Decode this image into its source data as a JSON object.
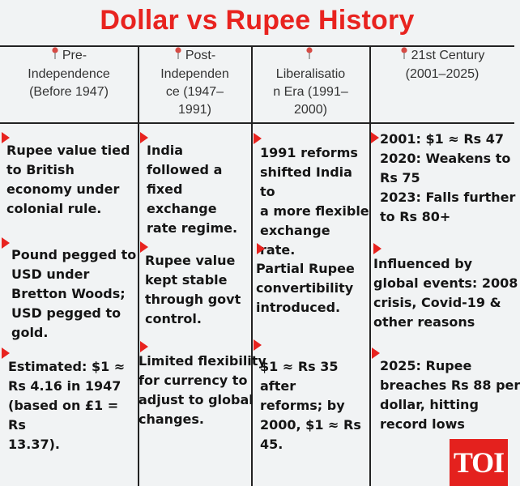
{
  "title": "Dollar vs Rupee History",
  "columns": [
    {
      "header_line1": "Pre-",
      "header_line2": "Independence",
      "header_line3": "(Before 1947)",
      "cells": [
        [
          "Rupee value tied",
          "to British",
          "economy under",
          "colonial rule."
        ],
        [
          "Pound pegged to",
          "USD under",
          "Bretton Woods;",
          "USD pegged to",
          "gold."
        ],
        [
          "Estimated: $1 ≈",
          "Rs 4.16 in 1947",
          "(based on £1 = Rs",
          "13.37)."
        ]
      ]
    },
    {
      "header_line1": "Post-",
      "header_line2": "Independen",
      "header_line3": "ce (1947–",
      "header_line4": "1991)",
      "cells": [
        [
          "India",
          "followed a",
          "fixed",
          "exchange",
          "rate regime."
        ],
        [
          "Rupee value",
          "kept stable",
          "through govt",
          "control."
        ],
        [
          "Limited flexibility",
          "for currency to",
          "adjust to global",
          "changes."
        ]
      ]
    },
    {
      "header_line1": "Liberalisatio",
      "header_line2": "n Era (1991–",
      "header_line3": "2000)",
      "cells": [
        [
          "1991 reforms",
          "shifted India to",
          "a more flexible",
          "exchange rate."
        ],
        [
          "Partial Rupee",
          "convertibility",
          "introduced."
        ],
        [
          "$1 ≈ Rs 35 after",
          "reforms; by",
          "2000, $1 ≈ Rs",
          "45."
        ]
      ]
    },
    {
      "header_line1": "21st Century",
      "header_line2": "(2001–2025)",
      "cells": [
        [
          "2001: $1 ≈ Rs 47",
          "2020: Weakens to",
          "Rs 75",
          "2023: Falls further",
          "to Rs 80+"
        ],
        [
          "Influenced by",
          "global events: 2008",
          "crisis, Covid-19 &",
          "other reasons"
        ],
        [
          "2025: Rupee",
          "breaches Rs 88 per",
          "dollar, hitting",
          "record lows"
        ]
      ]
    }
  ],
  "logo": "TOI",
  "colors": {
    "accent": "#e8231f",
    "background": "#f1f3f4",
    "pin": "#c9302c"
  },
  "icons": {
    "header_marker": "map-pin-icon",
    "bullet": "red-triangle-icon"
  }
}
